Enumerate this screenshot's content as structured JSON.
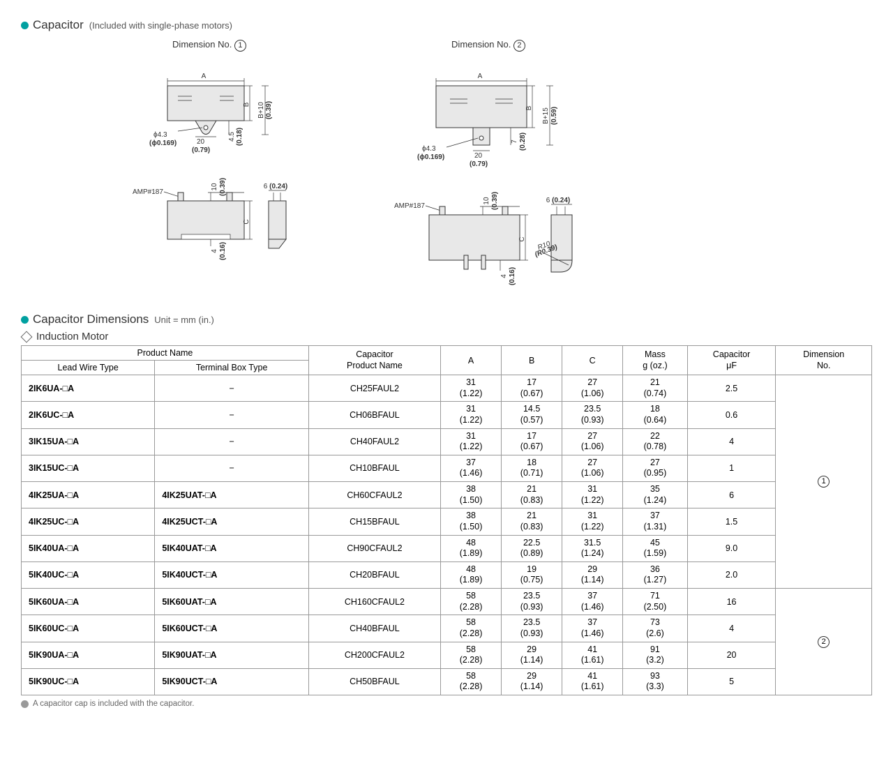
{
  "header1": {
    "title": "Capacitor",
    "subtitle": "(Included with single-phase motors)"
  },
  "dim_labels": {
    "no1": "Dimension No.",
    "no2": "Dimension No.",
    "circ1": "1",
    "circ2": "2"
  },
  "diagram": {
    "A": "A",
    "B": "B",
    "C": "C",
    "phi": "ϕ4.3",
    "phi_in": "(ϕ0.169)",
    "w20": "20",
    "w20_in": "(0.79)",
    "h45": "4.5",
    "h45_in": "(0.18)",
    "h7": "7",
    "h7_in": "(0.28)",
    "b10": "B+10",
    "b10_in": "(0.39)",
    "b15": "B+15",
    "b15_in": "(0.59)",
    "amp": "AMP#187",
    "t10": "10",
    "t10_in": "(0.39)",
    "t6": "6",
    "t6_in": "(0.24)",
    "t4": "4",
    "t4_in": "(0.16)",
    "r10": "R10",
    "r10_in": "(R0.39)"
  },
  "header2": {
    "title": "Capacitor Dimensions",
    "unit": "Unit = mm (in.)"
  },
  "subheader": "Induction Motor",
  "table": {
    "headers": {
      "product_name": "Product Name",
      "lead_wire": "Lead Wire Type",
      "terminal_box": "Terminal Box Type",
      "cap_name": "Capacitor\nProduct Name",
      "A": "A",
      "B": "B",
      "C": "C",
      "mass": "Mass\ng (oz.)",
      "uf": "Capacitor\nμF",
      "dimno": "Dimension\nNo."
    },
    "rows": [
      {
        "lw": "2IK6UA-□A",
        "tb": "−",
        "cap": "CH25FAUL2",
        "A": "31",
        "Ai": "(1.22)",
        "B": "17",
        "Bi": "(0.67)",
        "C": "27",
        "Ci": "(1.06)",
        "M": "21",
        "Mi": "(0.74)",
        "uf": "2.5"
      },
      {
        "lw": "2IK6UC-□A",
        "tb": "−",
        "cap": "CH06BFAUL",
        "A": "31",
        "Ai": "(1.22)",
        "B": "14.5",
        "Bi": "(0.57)",
        "C": "23.5",
        "Ci": "(0.93)",
        "M": "18",
        "Mi": "(0.64)",
        "uf": "0.6"
      },
      {
        "lw": "3IK15UA-□A",
        "tb": "−",
        "cap": "CH40FAUL2",
        "A": "31",
        "Ai": "(1.22)",
        "B": "17",
        "Bi": "(0.67)",
        "C": "27",
        "Ci": "(1.06)",
        "M": "22",
        "Mi": "(0.78)",
        "uf": "4"
      },
      {
        "lw": "3IK15UC-□A",
        "tb": "−",
        "cap": "CH10BFAUL",
        "A": "37",
        "Ai": "(1.46)",
        "B": "18",
        "Bi": "(0.71)",
        "C": "27",
        "Ci": "(1.06)",
        "M": "27",
        "Mi": "(0.95)",
        "uf": "1"
      },
      {
        "lw": "4IK25UA-□A",
        "tb": "4IK25UAT-□A",
        "cap": "CH60CFAUL2",
        "A": "38",
        "Ai": "(1.50)",
        "B": "21",
        "Bi": "(0.83)",
        "C": "31",
        "Ci": "(1.22)",
        "M": "35",
        "Mi": "(1.24)",
        "uf": "6"
      },
      {
        "lw": "4IK25UC-□A",
        "tb": "4IK25UCT-□A",
        "cap": "CH15BFAUL",
        "A": "38",
        "Ai": "(1.50)",
        "B": "21",
        "Bi": "(0.83)",
        "C": "31",
        "Ci": "(1.22)",
        "M": "37",
        "Mi": "(1.31)",
        "uf": "1.5"
      },
      {
        "lw": "5IK40UA-□A",
        "tb": "5IK40UAT-□A",
        "cap": "CH90CFAUL2",
        "A": "48",
        "Ai": "(1.89)",
        "B": "22.5",
        "Bi": "(0.89)",
        "C": "31.5",
        "Ci": "(1.24)",
        "M": "45",
        "Mi": "(1.59)",
        "uf": "9.0"
      },
      {
        "lw": "5IK40UC-□A",
        "tb": "5IK40UCT-□A",
        "cap": "CH20BFAUL",
        "A": "48",
        "Ai": "(1.89)",
        "B": "19",
        "Bi": "(0.75)",
        "C": "29",
        "Ci": "(1.14)",
        "M": "36",
        "Mi": "(1.27)",
        "uf": "2.0"
      },
      {
        "lw": "5IK60UA-□A",
        "tb": "5IK60UAT-□A",
        "cap": "CH160CFAUL2",
        "A": "58",
        "Ai": "(2.28)",
        "B": "23.5",
        "Bi": "(0.93)",
        "C": "37",
        "Ci": "(1.46)",
        "M": "71",
        "Mi": "(2.50)",
        "uf": "16"
      },
      {
        "lw": "5IK60UC-□A",
        "tb": "5IK60UCT-□A",
        "cap": "CH40BFAUL",
        "A": "58",
        "Ai": "(2.28)",
        "B": "23.5",
        "Bi": "(0.93)",
        "C": "37",
        "Ci": "(1.46)",
        "M": "73",
        "Mi": "(2.6)",
        "uf": "4"
      },
      {
        "lw": "5IK90UA-□A",
        "tb": "5IK90UAT-□A",
        "cap": "CH200CFAUL2",
        "A": "58",
        "Ai": "(2.28)",
        "B": "29",
        "Bi": "(1.14)",
        "C": "41",
        "Ci": "(1.61)",
        "M": "91",
        "Mi": "(3.2)",
        "uf": "20"
      },
      {
        "lw": "5IK90UC-□A",
        "tb": "5IK90UCT-□A",
        "cap": "CH50BFAUL",
        "A": "58",
        "Ai": "(2.28)",
        "B": "29",
        "Bi": "(1.14)",
        "C": "41",
        "Ci": "(1.61)",
        "M": "93",
        "Mi": "(3.3)",
        "uf": "5"
      }
    ],
    "dim_groups": [
      {
        "label": "1",
        "span": 8
      },
      {
        "label": "2",
        "span": 4
      }
    ]
  },
  "footnote": "A capacitor cap is included with the capacitor."
}
